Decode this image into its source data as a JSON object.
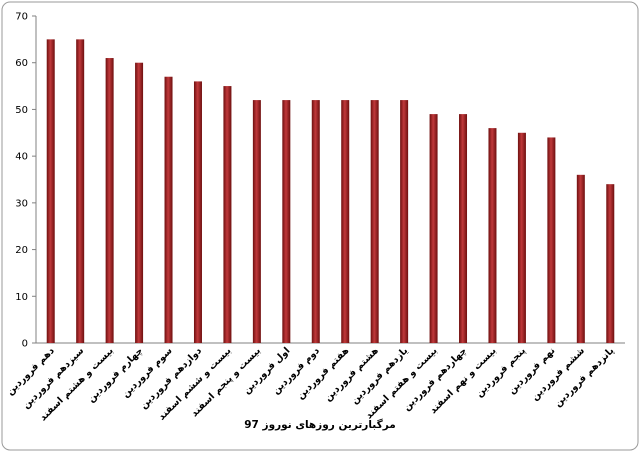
{
  "chart_data": {
    "type": "bar",
    "x_label": "مرگبارترین روزهای نوروز 97",
    "categories": [
      "دهم فروردین",
      "سیزدهم فروردین",
      "بیست و هشتم اسفند",
      "چهارم فروردین",
      "سوم فروردین",
      "دوازدهم فروردین",
      "بیست و ششم اسفند",
      "بیست و پنجم اسفند",
      "اول فروردین",
      "دوم فروردین",
      "هفتم فروردین",
      "هشتم فروردین",
      "یازدهم فروردین",
      "بیست و هفتم اسفند",
      "چهاردهم فروردین",
      "بیست و نهم اسفند",
      "پنجم فروردین",
      "نهم فروردین",
      "ششم فروردین",
      "پانزدهم فروردین"
    ],
    "values": [
      65,
      65,
      61,
      60,
      57,
      56,
      55,
      52,
      52,
      52,
      52,
      52,
      52,
      49,
      49,
      46,
      45,
      44,
      36,
      34
    ],
    "color": "#c0393b",
    "ylim": [
      0,
      70
    ],
    "yticks": [
      0,
      10,
      20,
      30,
      40,
      50,
      60,
      70
    ],
    "grid": false
  }
}
